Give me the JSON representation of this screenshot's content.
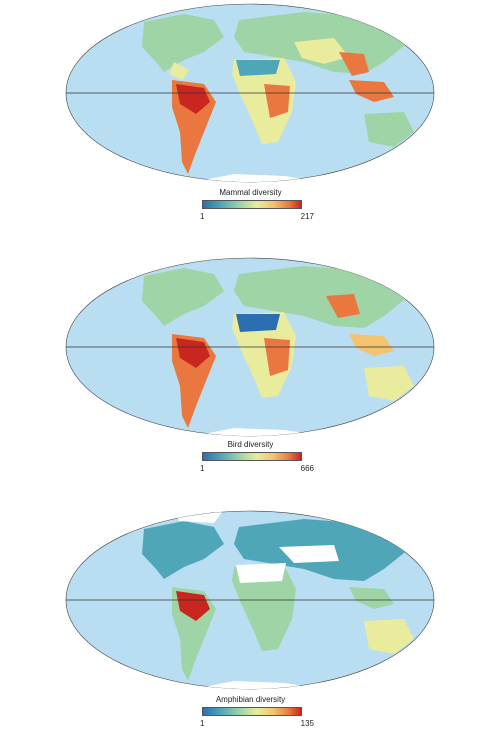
{
  "maps": [
    {
      "legend_title": "Mammal diversity",
      "min": "1",
      "max": "217"
    },
    {
      "legend_title": "Bird diversity",
      "min": "1",
      "max": "666"
    },
    {
      "legend_title": "Amphibian diversity",
      "min": "1",
      "max": "135"
    }
  ],
  "colors": {
    "ocean": "#b9def2",
    "land_low": "#4ea6b8",
    "land_mid": "#9fd4a6",
    "land_high": "#e9773f",
    "land_peak": "#c9261f",
    "ice": "#ffffff",
    "equator": "#333333"
  },
  "colorscale": [
    "#2c6fb0",
    "#4ea6b8",
    "#9fd4a6",
    "#e8ec9c",
    "#f3c370",
    "#e9773f",
    "#c9261f"
  ]
}
